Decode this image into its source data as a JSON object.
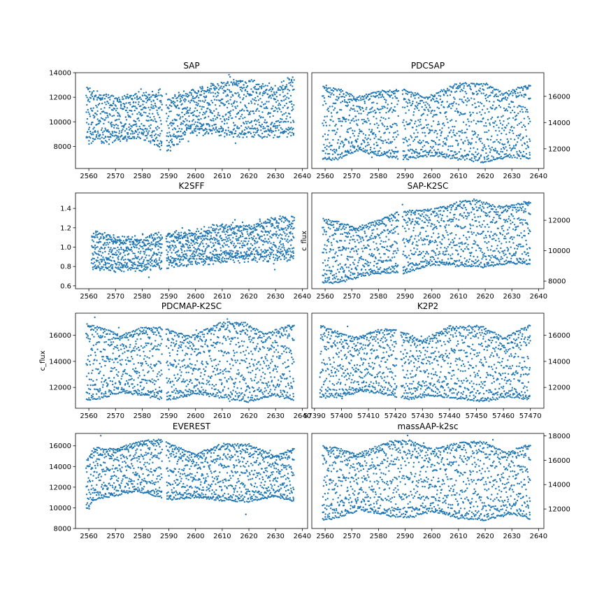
{
  "figure": {
    "point_color": "#1f77b4",
    "axis_color": "#000000",
    "background": "#ffffff"
  },
  "chart_data": [
    {
      "type": "scatter",
      "title": "SAP",
      "xlabel": "",
      "ylabel": "",
      "xlim": [
        2555,
        2642
      ],
      "ylim": [
        6200,
        14000
      ],
      "ytick_side": "left",
      "xticks": [
        2560,
        2570,
        2580,
        2590,
        2600,
        2610,
        2620,
        2630,
        2640
      ],
      "yticks": [
        8000,
        10000,
        12000,
        14000
      ],
      "x_range": [
        2559,
        2637
      ],
      "gap": [
        2587.5,
        2589
      ],
      "low_envelope": [
        [
          2559,
          8500
        ],
        [
          2570,
          8500
        ],
        [
          2580,
          8900
        ],
        [
          2587,
          7900
        ],
        [
          2590,
          7800
        ],
        [
          2597,
          9200
        ],
        [
          2610,
          9000
        ],
        [
          2620,
          8900
        ],
        [
          2630,
          9000
        ],
        [
          2637,
          9000
        ]
      ],
      "high_envelope": [
        [
          2559,
          12600
        ],
        [
          2570,
          11800
        ],
        [
          2580,
          12200
        ],
        [
          2587,
          12400
        ],
        [
          2590,
          11800
        ],
        [
          2600,
          12500
        ],
        [
          2615,
          13400
        ],
        [
          2625,
          13000
        ],
        [
          2630,
          12700
        ],
        [
          2637,
          13600
        ]
      ],
      "scatter_jitter": 650,
      "outlier_fraction": 0.04
    },
    {
      "type": "scatter",
      "title": "PDCSAP",
      "xlabel": "",
      "ylabel": "",
      "xlim": [
        2555,
        2642
      ],
      "ylim": [
        10500,
        17800
      ],
      "ytick_side": "right",
      "xticks": [
        2560,
        2570,
        2580,
        2590,
        2600,
        2610,
        2620,
        2630,
        2640
      ],
      "yticks": [
        12000,
        14000,
        16000
      ],
      "x_range": [
        2559,
        2637
      ],
      "gap": [
        2587.5,
        2589
      ],
      "low_envelope": [
        [
          2559,
          11200
        ],
        [
          2565,
          11200
        ],
        [
          2572,
          11900
        ],
        [
          2580,
          11500
        ],
        [
          2590,
          11200
        ],
        [
          2600,
          11500
        ],
        [
          2610,
          11200
        ],
        [
          2620,
          11000
        ],
        [
          2630,
          11400
        ],
        [
          2637,
          11200
        ]
      ],
      "high_envelope": [
        [
          2559,
          16800
        ],
        [
          2566,
          16500
        ],
        [
          2572,
          15900
        ],
        [
          2580,
          16400
        ],
        [
          2590,
          16500
        ],
        [
          2598,
          15900
        ],
        [
          2610,
          17000
        ],
        [
          2620,
          17000
        ],
        [
          2627,
          16200
        ],
        [
          2637,
          17000
        ]
      ],
      "scatter_jitter": 150,
      "outlier_fraction": 0.01
    },
    {
      "type": "scatter",
      "title": "K2SFF",
      "xlabel": "",
      "ylabel": "",
      "xlim": [
        2555,
        2642
      ],
      "ylim": [
        0.57,
        1.56
      ],
      "ytick_side": "left",
      "xticks": [
        2560,
        2570,
        2580,
        2590,
        2600,
        2610,
        2620,
        2630,
        2640
      ],
      "yticks": [
        0.6,
        0.8,
        1.0,
        1.2,
        1.4
      ],
      "x_range": [
        2561,
        2637
      ],
      "gap": [
        2587.5,
        2589
      ],
      "low_envelope": [
        [
          2561,
          0.8
        ],
        [
          2570,
          0.78
        ],
        [
          2580,
          0.78
        ],
        [
          2590,
          0.82
        ],
        [
          2600,
          0.85
        ],
        [
          2610,
          0.86
        ],
        [
          2620,
          0.88
        ],
        [
          2630,
          0.88
        ],
        [
          2637,
          0.9
        ]
      ],
      "high_envelope": [
        [
          2561,
          1.15
        ],
        [
          2570,
          1.08
        ],
        [
          2580,
          1.1
        ],
        [
          2590,
          1.12
        ],
        [
          2600,
          1.15
        ],
        [
          2610,
          1.22
        ],
        [
          2620,
          1.22
        ],
        [
          2630,
          1.28
        ],
        [
          2637,
          1.3
        ]
      ],
      "scatter_jitter": 0.08,
      "outlier_fraction": 0.05
    },
    {
      "type": "scatter",
      "title": "SAP-K2SC",
      "xlabel": "",
      "ylabel": "c_flux",
      "xlim": [
        2555,
        2642
      ],
      "ylim": [
        7500,
        13800
      ],
      "ytick_side": "right",
      "xticks": [
        2560,
        2570,
        2580,
        2590,
        2600,
        2610,
        2620,
        2630,
        2640
      ],
      "yticks": [
        8000,
        10000,
        12000
      ],
      "x_range": [
        2559,
        2637
      ],
      "gap": [
        2587.5,
        2589
      ],
      "low_envelope": [
        [
          2559,
          7900
        ],
        [
          2565,
          7900
        ],
        [
          2575,
          8400
        ],
        [
          2587,
          8600
        ],
        [
          2590,
          8500
        ],
        [
          2600,
          9100
        ],
        [
          2610,
          9000
        ],
        [
          2620,
          8900
        ],
        [
          2630,
          9200
        ],
        [
          2637,
          9100
        ]
      ],
      "high_envelope": [
        [
          2559,
          12100
        ],
        [
          2565,
          11900
        ],
        [
          2572,
          11500
        ],
        [
          2587,
          12500
        ],
        [
          2590,
          12600
        ],
        [
          2600,
          12700
        ],
        [
          2615,
          13400
        ],
        [
          2625,
          12900
        ],
        [
          2630,
          13000
        ],
        [
          2637,
          13300
        ]
      ],
      "scatter_jitter": 120,
      "outlier_fraction": 0.01
    },
    {
      "type": "scatter",
      "title": "PDCMAP-K2SC",
      "xlabel": "",
      "ylabel": "c_flux",
      "xlim": [
        2555,
        2642
      ],
      "ylim": [
        10400,
        17700
      ],
      "ytick_side": "left",
      "xticks": [
        2560,
        2570,
        2580,
        2590,
        2600,
        2610,
        2620,
        2630,
        2640
      ],
      "yticks": [
        12000,
        14000,
        16000
      ],
      "x_range": [
        2559,
        2637
      ],
      "gap": [
        2587.5,
        2589
      ],
      "low_envelope": [
        [
          2559,
          11000
        ],
        [
          2565,
          11200
        ],
        [
          2572,
          11600
        ],
        [
          2580,
          11400
        ],
        [
          2590,
          11000
        ],
        [
          2600,
          11500
        ],
        [
          2610,
          11200
        ],
        [
          2620,
          10900
        ],
        [
          2630,
          11400
        ],
        [
          2637,
          11000
        ]
      ],
      "high_envelope": [
        [
          2559,
          16900
        ],
        [
          2566,
          16500
        ],
        [
          2572,
          16000
        ],
        [
          2580,
          16600
        ],
        [
          2587,
          16600
        ],
        [
          2598,
          15900
        ],
        [
          2610,
          17000
        ],
        [
          2618,
          17000
        ],
        [
          2626,
          16100
        ],
        [
          2637,
          16900
        ]
      ],
      "scatter_jitter": 120,
      "outlier_fraction": 0.01
    },
    {
      "type": "scatter",
      "title": "K2P2",
      "xlabel": "",
      "ylabel": "",
      "xlim": [
        57389,
        57475
      ],
      "ylim": [
        10400,
        17700
      ],
      "ytick_side": "right",
      "xticks": [
        57390,
        57400,
        57410,
        57420,
        57430,
        57440,
        57450,
        57460,
        57470
      ],
      "yticks": [
        12000,
        14000,
        16000
      ],
      "x_range": [
        57392,
        57470
      ],
      "gap": [
        57420.5,
        57422
      ],
      "low_envelope": [
        [
          57392,
          11200
        ],
        [
          57400,
          11300
        ],
        [
          57408,
          11700
        ],
        [
          57415,
          11500
        ],
        [
          57425,
          11100
        ],
        [
          57433,
          11400
        ],
        [
          57445,
          11100
        ],
        [
          57453,
          10900
        ],
        [
          57462,
          11300
        ],
        [
          57470,
          11000
        ]
      ],
      "high_envelope": [
        [
          57392,
          16800
        ],
        [
          57398,
          16300
        ],
        [
          57405,
          15800
        ],
        [
          57413,
          16400
        ],
        [
          57420,
          16500
        ],
        [
          57430,
          15600
        ],
        [
          57440,
          16700
        ],
        [
          57452,
          16700
        ],
        [
          57460,
          15800
        ],
        [
          57470,
          16800
        ]
      ],
      "scatter_jitter": 120,
      "outlier_fraction": 0.01
    },
    {
      "type": "scatter",
      "title": "EVEREST",
      "xlabel": "",
      "ylabel": "",
      "xlim": [
        2555,
        2642
      ],
      "ylim": [
        8000,
        17200
      ],
      "ytick_side": "left",
      "xticks": [
        2560,
        2570,
        2580,
        2590,
        2600,
        2610,
        2620,
        2630,
        2640
      ],
      "yticks": [
        8000,
        10000,
        12000,
        14000,
        16000
      ],
      "x_range": [
        2559,
        2637
      ],
      "gap": [
        2587.5,
        2589
      ],
      "low_envelope": [
        [
          2559,
          9800
        ],
        [
          2562,
          10800
        ],
        [
          2570,
          11200
        ],
        [
          2578,
          11600
        ],
        [
          2587,
          11000
        ],
        [
          2590,
          10800
        ],
        [
          2600,
          11000
        ],
        [
          2610,
          10700
        ],
        [
          2620,
          10600
        ],
        [
          2630,
          11100
        ],
        [
          2637,
          10600
        ]
      ],
      "high_envelope": [
        [
          2559,
          14500
        ],
        [
          2562,
          15800
        ],
        [
          2570,
          15700
        ],
        [
          2580,
          16500
        ],
        [
          2587,
          16600
        ],
        [
          2592,
          16000
        ],
        [
          2600,
          15200
        ],
        [
          2610,
          16200
        ],
        [
          2620,
          16100
        ],
        [
          2630,
          15000
        ],
        [
          2637,
          15800
        ]
      ],
      "scatter_jitter": 130,
      "outlier_fraction": 0.01
    },
    {
      "type": "scatter",
      "title": "massAAP-k2sc",
      "xlabel": "",
      "ylabel": "",
      "xlim": [
        2555,
        2642
      ],
      "ylim": [
        10400,
        18200
      ],
      "ytick_side": "right",
      "xticks": [
        2560,
        2570,
        2580,
        2590,
        2600,
        2610,
        2620,
        2630,
        2640
      ],
      "yticks": [
        12000,
        14000,
        16000,
        18000
      ],
      "x_range": [
        2559,
        2637
      ],
      "gap": null,
      "low_envelope": [
        [
          2559,
          11100
        ],
        [
          2565,
          11300
        ],
        [
          2573,
          11900
        ],
        [
          2585,
          11400
        ],
        [
          2592,
          11300
        ],
        [
          2600,
          11800
        ],
        [
          2610,
          11200
        ],
        [
          2620,
          11100
        ],
        [
          2630,
          11600
        ],
        [
          2637,
          11200
        ]
      ],
      "high_envelope": [
        [
          2559,
          17200
        ],
        [
          2565,
          17000
        ],
        [
          2572,
          16500
        ],
        [
          2585,
          17600
        ],
        [
          2592,
          17600
        ],
        [
          2600,
          16900
        ],
        [
          2612,
          17500
        ],
        [
          2620,
          17500
        ],
        [
          2628,
          16600
        ],
        [
          2637,
          17400
        ]
      ],
      "scatter_jitter": 120,
      "outlier_fraction": 0.01
    }
  ]
}
